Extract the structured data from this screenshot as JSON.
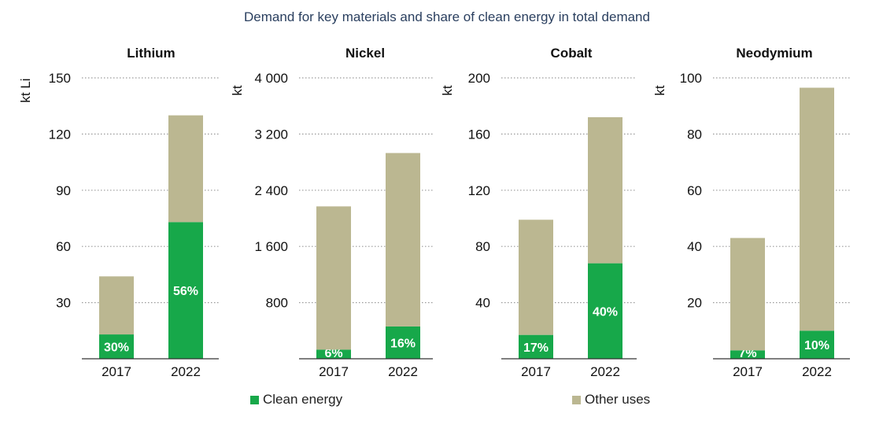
{
  "title": "Demand for key materials and share of clean energy in total demand",
  "colors": {
    "clean": "#17a84a",
    "other": "#bbb791",
    "grid": "#9a9a9a",
    "axis": "#333333"
  },
  "legend": {
    "clean_label": "Clean energy",
    "other_label": "Other uses"
  },
  "chart_data": [
    {
      "type": "bar",
      "stacked": true,
      "title": "Lithium",
      "ylabel": "kt Li",
      "ylim": [
        0,
        150
      ],
      "yticks": [
        30,
        60,
        90,
        120,
        150
      ],
      "ytick_labels": [
        "30",
        "60",
        "90",
        "120",
        "150"
      ],
      "categories": [
        "2017",
        "2022"
      ],
      "series": [
        {
          "name": "Clean energy",
          "values": [
            13,
            73
          ],
          "labels": [
            "30%",
            "56%"
          ]
        },
        {
          "name": "Other uses",
          "values": [
            31,
            57
          ]
        }
      ]
    },
    {
      "type": "bar",
      "stacked": true,
      "title": "Nickel",
      "ylabel": "kt",
      "ylim": [
        0,
        4000
      ],
      "yticks": [
        800,
        1600,
        2400,
        3200,
        4000
      ],
      "ytick_labels": [
        "800",
        "1 600",
        "2 400",
        "3 200",
        "4 000"
      ],
      "categories": [
        "2017",
        "2022"
      ],
      "series": [
        {
          "name": "Clean energy",
          "values": [
            130,
            460
          ],
          "labels": [
            "6%",
            "16%"
          ]
        },
        {
          "name": "Other uses",
          "values": [
            2040,
            2470
          ]
        }
      ]
    },
    {
      "type": "bar",
      "stacked": true,
      "title": "Cobalt",
      "ylabel": "kt",
      "ylim": [
        0,
        200
      ],
      "yticks": [
        40,
        80,
        120,
        160,
        200
      ],
      "ytick_labels": [
        "40",
        "80",
        "120",
        "160",
        "200"
      ],
      "categories": [
        "2017",
        "2022"
      ],
      "series": [
        {
          "name": "Clean energy",
          "values": [
            17,
            68
          ],
          "labels": [
            "17%",
            "40%"
          ]
        },
        {
          "name": "Other uses",
          "values": [
            82,
            104
          ]
        }
      ]
    },
    {
      "type": "bar",
      "stacked": true,
      "title": "Neodymium",
      "ylabel": "kt",
      "ylim": [
        0,
        100
      ],
      "yticks": [
        20,
        40,
        60,
        80,
        100
      ],
      "ytick_labels": [
        "20",
        "40",
        "60",
        "80",
        "100"
      ],
      "categories": [
        "2017",
        "2022"
      ],
      "series": [
        {
          "name": "Clean energy",
          "values": [
            3,
            10
          ],
          "labels": [
            "7%",
            "10%"
          ]
        },
        {
          "name": "Other uses",
          "values": [
            40,
            86.5
          ]
        }
      ]
    }
  ]
}
